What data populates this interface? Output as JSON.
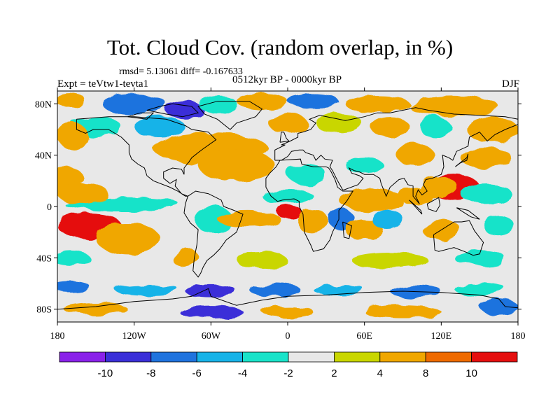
{
  "header": {
    "title": "Tot. Cloud Cov. (random overlap, in %)",
    "stats": "rmsd= 5.13061 diff= -0.167633",
    "experiment": "Expt = teVtw1-tevta1",
    "period": "0512kyr BP - 0000kyr BP",
    "season": "DJF"
  },
  "map": {
    "lat_ticks": [
      {
        "label": "80N",
        "value": 80
      },
      {
        "label": "40N",
        "value": 40
      },
      {
        "label": "0",
        "value": 0
      },
      {
        "label": "40S",
        "value": -40
      },
      {
        "label": "80S",
        "value": -80
      }
    ],
    "lon_ticks": [
      {
        "label": "180",
        "value": -180
      },
      {
        "label": "120W",
        "value": -120
      },
      {
        "label": "60W",
        "value": -60
      },
      {
        "label": "0",
        "value": 0
      },
      {
        "label": "60E",
        "value": 60
      },
      {
        "label": "120E",
        "value": 120
      },
      {
        "label": "180",
        "value": 180
      }
    ],
    "lat_range": [
      -90,
      90
    ],
    "lon_range": [
      -180,
      180
    ],
    "anomaly_regions": [
      {
        "lon": -170,
        "lat": 83,
        "rlon": 12,
        "rlat": 5,
        "v": 6
      },
      {
        "lon": -120,
        "lat": 80,
        "rlon": 25,
        "rlat": 8,
        "v": -8
      },
      {
        "lon": -80,
        "lat": 75,
        "rlon": 15,
        "rlat": 7,
        "v": -10
      },
      {
        "lon": -55,
        "lat": 80,
        "rlon": 15,
        "rlat": 7,
        "v": -4
      },
      {
        "lon": -20,
        "lat": 82,
        "rlon": 20,
        "rlat": 6,
        "v": 6
      },
      {
        "lon": 20,
        "lat": 82,
        "rlon": 20,
        "rlat": 5,
        "v": -8
      },
      {
        "lon": 70,
        "lat": 80,
        "rlon": 25,
        "rlat": 7,
        "v": 5
      },
      {
        "lon": 130,
        "lat": 78,
        "rlon": 35,
        "rlat": 8,
        "v": 6
      },
      {
        "lon": -150,
        "lat": 62,
        "rlon": 20,
        "rlat": 8,
        "v": -4
      },
      {
        "lon": -100,
        "lat": 62,
        "rlon": 20,
        "rlat": 8,
        "v": -6
      },
      {
        "lon": 0,
        "lat": 65,
        "rlon": 15,
        "rlat": 8,
        "v": 6
      },
      {
        "lon": 40,
        "lat": 65,
        "rlon": 18,
        "rlat": 8,
        "v": 3
      },
      {
        "lon": 80,
        "lat": 62,
        "rlon": 15,
        "rlat": 8,
        "v": 5
      },
      {
        "lon": 115,
        "lat": 62,
        "rlon": 12,
        "rlat": 8,
        "v": -4
      },
      {
        "lon": 160,
        "lat": 60,
        "rlon": 20,
        "rlat": 10,
        "v": 5
      },
      {
        "lon": -168,
        "lat": 55,
        "rlon": 12,
        "rlat": 10,
        "v": 6
      },
      {
        "lon": -60,
        "lat": 45,
        "rlon": 45,
        "rlat": 12,
        "v": 6
      },
      {
        "lon": -40,
        "lat": 32,
        "rlon": 30,
        "rlat": 12,
        "v": 5
      },
      {
        "lon": 15,
        "lat": 25,
        "rlon": 15,
        "rlat": 8,
        "v": -4
      },
      {
        "lon": 60,
        "lat": 32,
        "rlon": 15,
        "rlat": 6,
        "v": -4
      },
      {
        "lon": 100,
        "lat": 40,
        "rlon": 15,
        "rlat": 8,
        "v": 5
      },
      {
        "lon": 155,
        "lat": 38,
        "rlon": 20,
        "rlat": 8,
        "v": 6
      },
      {
        "lon": -175,
        "lat": 22,
        "rlon": 15,
        "rlat": 10,
        "v": 5
      },
      {
        "lon": 130,
        "lat": 15,
        "rlon": 20,
        "rlat": 10,
        "v": 10
      },
      {
        "lon": 118,
        "lat": 15,
        "rlon": 15,
        "rlat": 8,
        "v": 7
      },
      {
        "lon": 100,
        "lat": 8,
        "rlon": 12,
        "rlat": 7,
        "v": 5
      },
      {
        "lon": 155,
        "lat": 10,
        "rlon": 20,
        "rlat": 8,
        "v": -4
      },
      {
        "lon": -130,
        "lat": 2,
        "rlon": 45,
        "rlat": 5,
        "v": -4
      },
      {
        "lon": -160,
        "lat": 10,
        "rlon": 20,
        "rlat": 8,
        "v": 4
      },
      {
        "lon": 0,
        "lat": 8,
        "rlon": 20,
        "rlat": 6,
        "v": -3
      },
      {
        "lon": 65,
        "lat": 5,
        "rlon": 25,
        "rlat": 8,
        "v": 5
      },
      {
        "lon": -155,
        "lat": -15,
        "rlon": 25,
        "rlat": 10,
        "v": 12
      },
      {
        "lon": -125,
        "lat": -25,
        "rlon": 25,
        "rlat": 12,
        "v": 6
      },
      {
        "lon": -58,
        "lat": -10,
        "rlon": 15,
        "rlat": 10,
        "v": -4
      },
      {
        "lon": -30,
        "lat": -10,
        "rlon": 25,
        "rlat": 6,
        "v": 6
      },
      {
        "lon": 2,
        "lat": -5,
        "rlon": 10,
        "rlat": 5,
        "v": 10
      },
      {
        "lon": 20,
        "lat": -12,
        "rlon": 12,
        "rlat": 10,
        "v": 5
      },
      {
        "lon": 42,
        "lat": -10,
        "rlon": 10,
        "rlat": 8,
        "v": -8
      },
      {
        "lon": 60,
        "lat": -18,
        "rlon": 15,
        "rlat": 8,
        "v": 6
      },
      {
        "lon": 78,
        "lat": -10,
        "rlon": 12,
        "rlat": 8,
        "v": -6
      },
      {
        "lon": 120,
        "lat": -18,
        "rlon": 15,
        "rlat": 8,
        "v": 6
      },
      {
        "lon": 165,
        "lat": -15,
        "rlon": 12,
        "rlat": 8,
        "v": -4
      },
      {
        "lon": -170,
        "lat": -40,
        "rlon": 15,
        "rlat": 6,
        "v": -4
      },
      {
        "lon": -80,
        "lat": -40,
        "rlon": 10,
        "rlat": 8,
        "v": 6
      },
      {
        "lon": -20,
        "lat": -42,
        "rlon": 20,
        "rlat": 6,
        "v": 3
      },
      {
        "lon": 80,
        "lat": -42,
        "rlon": 30,
        "rlat": 6,
        "v": 3
      },
      {
        "lon": 150,
        "lat": -40,
        "rlon": 20,
        "rlat": 6,
        "v": -3
      },
      {
        "lon": -170,
        "lat": -62,
        "rlon": 15,
        "rlat": 4,
        "v": -8
      },
      {
        "lon": -110,
        "lat": -65,
        "rlon": 25,
        "rlat": 4,
        "v": -6
      },
      {
        "lon": -60,
        "lat": -66,
        "rlon": 20,
        "rlat": 5,
        "v": -10
      },
      {
        "lon": -10,
        "lat": -65,
        "rlon": 20,
        "rlat": 5,
        "v": -8
      },
      {
        "lon": 40,
        "lat": -65,
        "rlon": 20,
        "rlat": 4,
        "v": -6
      },
      {
        "lon": 100,
        "lat": -66,
        "rlon": 20,
        "rlat": 5,
        "v": -8
      },
      {
        "lon": 150,
        "lat": -64,
        "rlon": 20,
        "rlat": 5,
        "v": -4
      },
      {
        "lon": -150,
        "lat": -80,
        "rlon": 25,
        "rlat": 5,
        "v": 6
      },
      {
        "lon": -60,
        "lat": -82,
        "rlon": 25,
        "rlat": 5,
        "v": -10
      },
      {
        "lon": 0,
        "lat": -82,
        "rlon": 20,
        "rlat": 5,
        "v": 6
      },
      {
        "lon": 90,
        "lat": -82,
        "rlon": 30,
        "rlat": 5,
        "v": 5
      },
      {
        "lon": 165,
        "lat": -78,
        "rlon": 15,
        "rlat": 6,
        "v": -8
      }
    ]
  },
  "colorbar": {
    "levels": [
      -10,
      -8,
      -6,
      -4,
      -2,
      2,
      4,
      8,
      10
    ],
    "labels": [
      "-10",
      "-8",
      "-6",
      "-4",
      "-2",
      "2",
      "4",
      "8",
      "10"
    ],
    "colors": [
      "#8a21e9",
      "#3a2fd8",
      "#1f73de",
      "#17b3e8",
      "#19e3c9",
      "#e8e8e8",
      "#c9d600",
      "#f0a700",
      "#ee6a00",
      "#e50f0f"
    ]
  }
}
